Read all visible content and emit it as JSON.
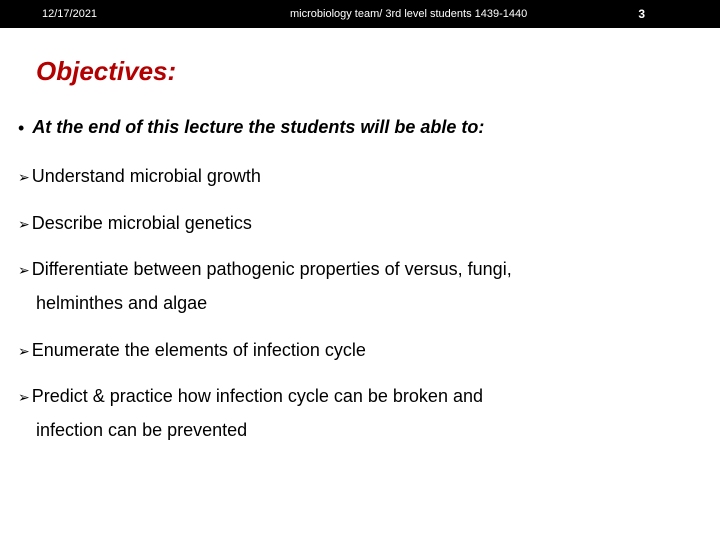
{
  "header": {
    "date": "12/17/2021",
    "center": "microbiology team/ 3rd level students 1439-1440",
    "page_number": "3",
    "bg_color": "#000000",
    "text_color": "#ffffff"
  },
  "title": {
    "text": "Objectives:",
    "color": "#b30000",
    "font_size": 26,
    "italic": true,
    "bold": true
  },
  "intro": {
    "bullet": "•",
    "text": "At the end of this lecture the students will be able to:"
  },
  "objectives": [
    {
      "arrow": "➢",
      "text": "Understand microbial growth"
    },
    {
      "arrow": "➢",
      "text": "Describe microbial genetics"
    },
    {
      "arrow": "➢",
      "text": "Differentiate between pathogenic properties of versus, fungi,",
      "cont": "helminthes and algae"
    },
    {
      "arrow": "➢",
      "text": "Enumerate the elements of infection cycle"
    },
    {
      "arrow": "➢",
      "text": "Predict & practice how infection cycle can be broken and",
      "cont": "infection can be prevented"
    }
  ],
  "styles": {
    "body_font_size": 18,
    "arrow_color": "#000000",
    "text_color": "#000000",
    "background_color": "#ffffff"
  }
}
